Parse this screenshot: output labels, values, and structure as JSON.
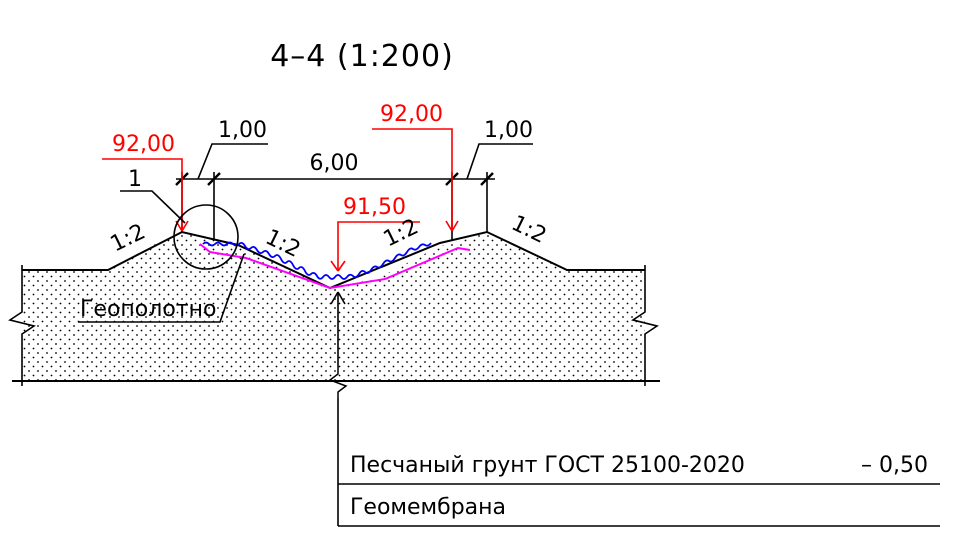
{
  "section_title": "4–4 (1:200)",
  "dimensions": {
    "berm_left": "1,00",
    "berm_right": "1,00",
    "bottom_width": "6,00"
  },
  "elevations": {
    "crest_left": "92,00",
    "crest_right": "92,00",
    "bottom": "91,50"
  },
  "slopes": {
    "outer_left": "1:2",
    "inner_left": "1:2",
    "inner_right": "1:2",
    "outer_right": "1:2"
  },
  "callouts": {
    "node": "1",
    "geotextile": "Геополотно"
  },
  "layers": [
    {
      "name": "Песчаный грунт  ГОСТ 25100-2020",
      "value": "– 0,50"
    },
    {
      "name": "Геомембрана",
      "value": ""
    }
  ],
  "colors": {
    "linework": "#000000",
    "elevation_marks": "#ff0000",
    "geomembrane": "#0000ff",
    "protective_layer": "#ff00ff"
  }
}
